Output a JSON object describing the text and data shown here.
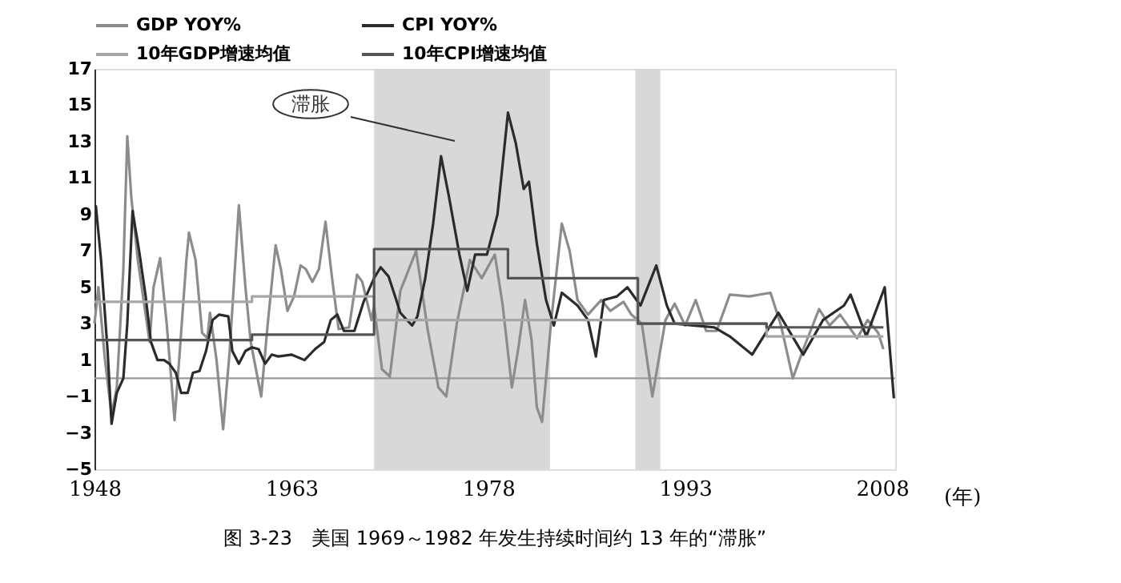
{
  "chart_data": {
    "type": "line",
    "xlabel": "(年)",
    "xlim": [
      1948,
      2009
    ],
    "xticks": [
      1948,
      1963,
      1978,
      1993,
      2008
    ],
    "ylim": [
      -5,
      17
    ],
    "yticks": [
      -5,
      -3,
      -1,
      1,
      3,
      5,
      7,
      9,
      11,
      13,
      15,
      17
    ],
    "legend": "top",
    "line_style": "solid",
    "marker": "none",
    "series": [
      {
        "name": "GDP YOY%",
        "color": "#8c8c8c",
        "type": "line",
        "x": [
          1948.0,
          1948.3,
          1948.8,
          1949.3,
          1949.7,
          1950.2,
          1950.5,
          1950.8,
          1951.3,
          1951.9,
          1952.2,
          1952.5,
          1953.0,
          1953.5,
          1954.1,
          1954.5,
          1955.0,
          1955.2,
          1955.7,
          1956.2,
          1956.6,
          1956.8,
          1957.3,
          1957.8,
          1958.3,
          1959.0,
          1959.5,
          1959.9,
          1960.7,
          1961.2,
          1961.8,
          1962.2,
          1962.7,
          1963.2,
          1963.7,
          1964.1,
          1964.6,
          1965.1,
          1965.6,
          1966.1,
          1966.6,
          1967.4,
          1968.0,
          1968.4,
          1969.1,
          1969.3,
          1969.9,
          1970.5,
          1971.3,
          1972.5,
          1973.4,
          1974.2,
          1974.8,
          1975.6,
          1976.6,
          1977.5,
          1978.5,
          1979.1,
          1979.8,
          1980.3,
          1980.8,
          1981.3,
          1981.7,
          1982.1,
          1982.8,
          1983.6,
          1984.2,
          1984.8,
          1985.6,
          1986.6,
          1987.3,
          1988.3,
          1988.9,
          1989.7,
          1990.5,
          1991.5,
          1992.2,
          1993.0,
          1993.8,
          1994.6,
          1995.4,
          1996.4,
          1997.9,
          1999.5,
          2000.3,
          2001.2,
          2002.0,
          2003.2,
          2004.0,
          2004.8,
          2006.1,
          2006.9,
          2007.7,
          2008.1
        ],
        "values": [
          3.0,
          5.0,
          1.0,
          -2.0,
          -0.5,
          6.0,
          13.3,
          10.0,
          6.5,
          3.5,
          2.0,
          5.0,
          6.6,
          3.0,
          -2.3,
          1.5,
          6.5,
          8.0,
          6.5,
          2.5,
          2.2,
          3.6,
          1.0,
          -2.8,
          1.5,
          9.5,
          5.0,
          2.0,
          -1.0,
          3.0,
          7.3,
          6.0,
          3.7,
          4.5,
          6.2,
          6.0,
          5.3,
          6.0,
          8.6,
          5.5,
          2.7,
          2.8,
          5.7,
          5.3,
          3.2,
          4.0,
          0.5,
          0.1,
          4.8,
          7.0,
          2.6,
          -0.5,
          -1.0,
          3.0,
          6.5,
          5.5,
          6.8,
          4.0,
          -0.5,
          1.7,
          4.3,
          2.1,
          -1.6,
          -2.4,
          3.2,
          8.5,
          7.0,
          4.3,
          3.5,
          4.3,
          3.7,
          4.2,
          3.5,
          3.0,
          -1.0,
          3.2,
          4.1,
          2.9,
          4.3,
          2.6,
          2.6,
          4.6,
          4.5,
          4.7,
          2.9,
          0.0,
          1.6,
          3.8,
          2.9,
          3.5,
          2.2,
          3.2,
          2.5,
          1.6
        ]
      },
      {
        "name": "CPI YOY%",
        "color": "#2b2b2b",
        "type": "line",
        "x": [
          1948.1,
          1948.5,
          1949.0,
          1949.3,
          1949.7,
          1950.2,
          1950.5,
          1950.9,
          1951.4,
          1951.9,
          1952.3,
          1952.8,
          1953.3,
          1953.7,
          1954.2,
          1954.6,
          1955.1,
          1955.5,
          1956.0,
          1956.5,
          1957.0,
          1957.5,
          1958.2,
          1958.5,
          1959.0,
          1959.5,
          1960.0,
          1960.5,
          1961.0,
          1961.5,
          1962.0,
          1963.0,
          1964.0,
          1964.8,
          1965.5,
          1966.0,
          1966.5,
          1967.0,
          1967.8,
          1968.5,
          1969.3,
          1969.8,
          1970.4,
          1970.9,
          1971.3,
          1971.8,
          1972.2,
          1972.6,
          1973.2,
          1973.8,
          1974.4,
          1975.0,
          1975.8,
          1976.4,
          1977.0,
          1977.9,
          1978.7,
          1979.5,
          1980.1,
          1980.7,
          1981.1,
          1981.7,
          1982.4,
          1983.0,
          1983.6,
          1984.8,
          1985.6,
          1986.2,
          1986.8,
          1987.8,
          1988.6,
          1989.6,
          1990.8,
          1991.6,
          1992.2,
          1993.6,
          1995.2,
          1996.4,
          1998.1,
          2000.1,
          2002.0,
          2003.5,
          2005.1,
          2005.6,
          2006.8,
          2008.2,
          2008.9
        ],
        "values": [
          9.5,
          6.5,
          1.5,
          -2.5,
          -0.8,
          0.0,
          3.0,
          9.2,
          7.0,
          4.5,
          2.0,
          1.0,
          1.0,
          0.8,
          0.3,
          -0.8,
          -0.8,
          0.3,
          0.4,
          1.5,
          3.2,
          3.5,
          3.4,
          1.5,
          0.8,
          1.5,
          1.7,
          1.6,
          0.8,
          1.3,
          1.2,
          1.3,
          1.0,
          1.6,
          2.0,
          3.2,
          3.5,
          2.6,
          2.6,
          4.2,
          5.5,
          6.1,
          5.6,
          4.5,
          3.6,
          3.2,
          2.9,
          3.4,
          5.5,
          8.5,
          12.2,
          10.0,
          6.8,
          4.8,
          6.8,
          6.8,
          9.0,
          14.6,
          12.9,
          10.4,
          10.8,
          7.4,
          4.3,
          2.9,
          4.7,
          4.0,
          3.2,
          1.2,
          4.3,
          4.5,
          5.0,
          4.0,
          6.2,
          4.0,
          3.0,
          2.9,
          2.8,
          2.3,
          1.3,
          3.6,
          1.3,
          3.2,
          4.0,
          4.6,
          2.3,
          5.0,
          -1.1
        ]
      },
      {
        "name": "10年GDP增速均值",
        "color": "#a6a6a6",
        "type": "step",
        "x": [
          1948,
          1960,
          1969.3,
          1989.4,
          1999.2,
          2008.1
        ],
        "values": [
          4.2,
          4.5,
          3.2,
          3.0,
          2.3,
          2.3
        ]
      },
      {
        "name": "10年CPI增速均值",
        "color": "#555555",
        "type": "step",
        "x": [
          1948,
          1960,
          1969.3,
          1979.5,
          1989.4,
          1999.2,
          2008.1
        ],
        "values": [
          2.1,
          2.4,
          7.1,
          5.5,
          3.0,
          2.8,
          2.8
        ]
      }
    ],
    "bands": [
      {
        "axis": "x",
        "from": 1969.3,
        "to": 1982.7,
        "color": "#d4d4d4"
      },
      {
        "axis": "x",
        "from": 1989.2,
        "to": 1991.1,
        "color": "#d4d4d4"
      }
    ],
    "ref_lines": [
      {
        "axis": "y",
        "value": 0,
        "color": "#9a9a9a"
      }
    ],
    "annotations": [
      "滞胀",
      "图 3-23　美国 1969～1982 年发生持续时间约 13 年的“滞胀”"
    ]
  }
}
